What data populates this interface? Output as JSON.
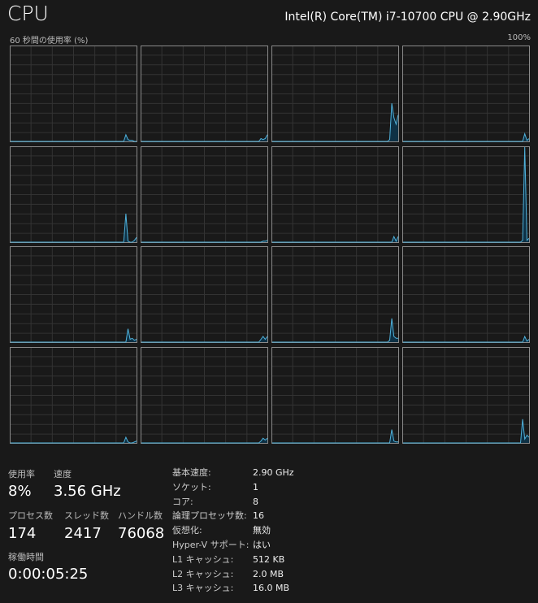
{
  "header": {
    "title": "CPU",
    "model": "Intel(R) Core(TM) i7-10700 CPU @ 2.90GHz"
  },
  "graph": {
    "caption": "60 秒間の使用率 (%)",
    "max_label": "100%",
    "line_color": "#4fb2dc",
    "fill_color": "#0e3145",
    "history_tail_percent": [
      [
        0,
        0,
        0,
        0,
        7,
        2,
        1,
        1,
        0,
        0
      ],
      [
        0,
        0,
        0,
        0,
        0,
        0,
        3,
        2,
        3,
        7
      ],
      [
        0,
        0,
        0,
        0,
        0,
        2,
        40,
        25,
        18,
        28
      ],
      [
        0,
        0,
        0,
        0,
        0,
        0,
        0,
        8,
        1,
        3
      ],
      [
        0,
        0,
        0,
        0,
        30,
        1,
        0,
        0,
        2,
        5
      ],
      [
        0,
        0,
        0,
        0,
        0,
        0,
        0,
        1,
        1,
        2
      ],
      [
        0,
        0,
        0,
        0,
        0,
        0,
        0,
        6,
        1,
        6
      ],
      [
        0,
        0,
        0,
        0,
        0,
        0,
        2,
        100,
        2,
        4
      ],
      [
        0,
        0,
        0,
        0,
        0,
        14,
        3,
        4,
        2,
        3
      ],
      [
        0,
        0,
        0,
        0,
        0,
        0,
        3,
        6,
        3,
        6
      ],
      [
        0,
        0,
        0,
        0,
        0,
        2,
        25,
        6,
        4,
        4
      ],
      [
        0,
        0,
        0,
        0,
        0,
        0,
        0,
        6,
        1,
        3
      ],
      [
        0,
        0,
        0,
        0,
        6,
        1,
        0,
        0,
        1,
        2
      ],
      [
        0,
        0,
        0,
        0,
        0,
        0,
        2,
        5,
        3,
        5
      ],
      [
        0,
        0,
        0,
        0,
        0,
        0,
        14,
        2,
        1,
        1
      ],
      [
        0,
        0,
        0,
        0,
        0,
        0,
        25,
        4,
        8,
        6
      ]
    ]
  },
  "stats": {
    "usage_label": "使用率",
    "usage": "8%",
    "speed_label": "速度",
    "speed": "3.56 GHz",
    "processes_label": "プロセス数",
    "processes": "174",
    "threads_label": "スレッド数",
    "threads": "2417",
    "handles_label": "ハンドル数",
    "handles": "76068",
    "uptime_label": "稼働時間",
    "uptime": "0:00:05:25"
  },
  "details": [
    {
      "k": "基本速度:",
      "v": "2.90 GHz"
    },
    {
      "k": "ソケット:",
      "v": "1"
    },
    {
      "k": "コア:",
      "v": "8"
    },
    {
      "k": "論理プロセッサ数:",
      "v": "16"
    },
    {
      "k": "仮想化:",
      "v": "無効"
    },
    {
      "k": "Hyper-V サポート:",
      "v": "はい"
    },
    {
      "k": "L1 キャッシュ:",
      "v": "512 KB"
    },
    {
      "k": "L2 キャッシュ:",
      "v": "2.0 MB"
    },
    {
      "k": "L3 キャッシュ:",
      "v": "16.0 MB"
    }
  ]
}
